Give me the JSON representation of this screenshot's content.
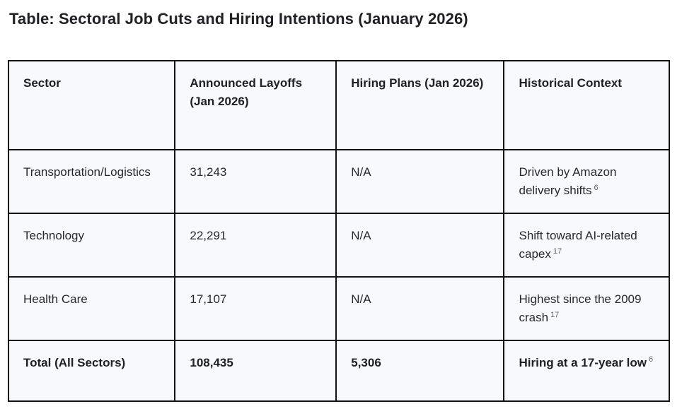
{
  "title": "Table: Sectoral Job Cuts and Hiring Intentions (January 2026)",
  "table": {
    "columns": [
      "Sector",
      "Announced Layoffs (Jan 2026)",
      "Hiring Plans (Jan 2026)",
      "Historical Context"
    ],
    "rows": [
      {
        "sector": "Transportation/Logistics",
        "layoffs": "31,243",
        "hiring": "N/A",
        "context": "Driven by Amazon delivery shifts",
        "context_ref": "6"
      },
      {
        "sector": "Technology",
        "layoffs": "22,291",
        "hiring": "N/A",
        "context": "Shift toward AI-related capex",
        "context_ref": "17"
      },
      {
        "sector": "Health Care",
        "layoffs": "17,107",
        "hiring": "N/A",
        "context": "Highest since the 2009 crash",
        "context_ref": "17"
      },
      {
        "sector": "Total (All Sectors)",
        "layoffs": "108,435",
        "hiring": "5,306",
        "context": "Hiring at a 17-year low",
        "context_ref": "6"
      }
    ]
  },
  "colors": {
    "border": "#111111",
    "cell_background": "#f8f9fa",
    "text": "#202124",
    "superscript": "#5f6368"
  }
}
